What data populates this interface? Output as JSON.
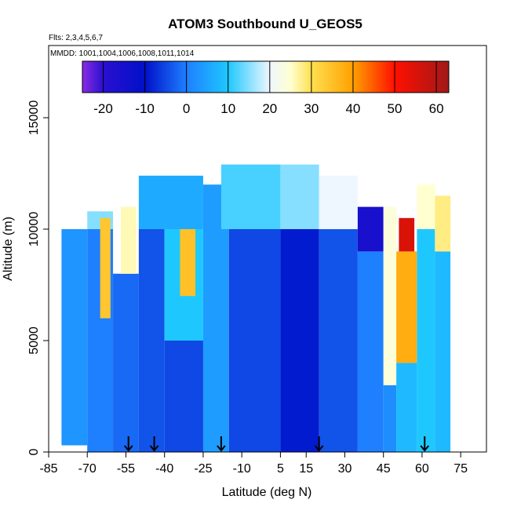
{
  "chart_data": {
    "type": "curtain",
    "title": "ATOM3 Southbound U_GEOS5",
    "subtitle": "Flts: 2,3,4,5,6,7",
    "annotation": "MMDD: 1001,1004,1006,1008,1011,1014",
    "x_label": "Latitude (deg N)",
    "y_label": "Altitude (m)",
    "xlim": [
      -85,
      85
    ],
    "ylim": [
      0,
      18240
    ],
    "xticks": [
      -85,
      -70,
      -55,
      -40,
      -25,
      -10,
      5,
      15,
      30,
      45,
      60,
      75
    ],
    "yticks": [
      0,
      5000,
      10000,
      15000
    ],
    "colorbar_lim": [
      -25,
      63
    ],
    "colorbar_ticks": [
      -20,
      -10,
      0,
      10,
      20,
      30,
      40,
      50,
      60
    ],
    "colorscale": [
      {
        "value": -25,
        "color": "#8a2be2"
      },
      {
        "value": -20,
        "color": "#2a10d0"
      },
      {
        "value": -10,
        "color": "#0010c8"
      },
      {
        "value": 0,
        "color": "#1e7fff"
      },
      {
        "value": 10,
        "color": "#1ec8ff"
      },
      {
        "value": 20,
        "color": "#eef6ff"
      },
      {
        "value": 25,
        "color": "#ffffd0"
      },
      {
        "value": 30,
        "color": "#ffe050"
      },
      {
        "value": 40,
        "color": "#ffa000"
      },
      {
        "value": 50,
        "color": "#ff1000"
      },
      {
        "value": 63,
        "color": "#a01818"
      }
    ],
    "flight_arrows": [
      -54,
      -44,
      -18,
      20,
      61
    ],
    "cells": [
      {
        "lat": [
          -80,
          -70
        ],
        "alt": [
          300,
          10000
        ],
        "value": 3
      },
      {
        "lat": [
          -70,
          -60
        ],
        "alt": [
          0,
          10000
        ],
        "value": 0
      },
      {
        "lat": [
          -70,
          -60
        ],
        "alt": [
          10000,
          10800
        ],
        "value": 15
      },
      {
        "lat": [
          -65,
          -61
        ],
        "alt": [
          6000,
          10500
        ],
        "value": 34
      },
      {
        "lat": [
          -60,
          -50
        ],
        "alt": [
          0,
          8000
        ],
        "value": -2
      },
      {
        "lat": [
          -57,
          -51
        ],
        "alt": [
          8000,
          11000
        ],
        "value": 26
      },
      {
        "lat": [
          -50,
          -40
        ],
        "alt": [
          0,
          10000
        ],
        "value": -4
      },
      {
        "lat": [
          -50,
          -25
        ],
        "alt": [
          10000,
          12400
        ],
        "value": 6
      },
      {
        "lat": [
          -40,
          -25
        ],
        "alt": [
          0,
          5000
        ],
        "value": -5
      },
      {
        "lat": [
          -40,
          -25
        ],
        "alt": [
          5000,
          10000
        ],
        "value": 10
      },
      {
        "lat": [
          -34,
          -28
        ],
        "alt": [
          7000,
          10000
        ],
        "value": 35
      },
      {
        "lat": [
          -25,
          -15
        ],
        "alt": [
          0,
          12000
        ],
        "value": 4
      },
      {
        "lat": [
          -15,
          5
        ],
        "alt": [
          0,
          10000
        ],
        "value": -5
      },
      {
        "lat": [
          -18,
          5
        ],
        "alt": [
          10000,
          12900
        ],
        "value": 12
      },
      {
        "lat": [
          5,
          20
        ],
        "alt": [
          0,
          10000
        ],
        "value": -9
      },
      {
        "lat": [
          5,
          20
        ],
        "alt": [
          10000,
          12900
        ],
        "value": 15
      },
      {
        "lat": [
          20,
          35
        ],
        "alt": [
          0,
          10000
        ],
        "value": -4
      },
      {
        "lat": [
          20,
          35
        ],
        "alt": [
          10000,
          12400
        ],
        "value": 20
      },
      {
        "lat": [
          35,
          45
        ],
        "alt": [
          0,
          9000
        ],
        "value": 0
      },
      {
        "lat": [
          35,
          45
        ],
        "alt": [
          9000,
          11000
        ],
        "value": -16
      },
      {
        "lat": [
          45,
          50
        ],
        "alt": [
          0,
          3000
        ],
        "value": 2
      },
      {
        "lat": [
          45,
          50
        ],
        "alt": [
          3000,
          11000
        ],
        "value": 24
      },
      {
        "lat": [
          50,
          58
        ],
        "alt": [
          0,
          4000
        ],
        "value": 8
      },
      {
        "lat": [
          50,
          58
        ],
        "alt": [
          4000,
          9000
        ],
        "value": 38
      },
      {
        "lat": [
          51,
          57
        ],
        "alt": [
          9000,
          10500
        ],
        "value": 55
      },
      {
        "lat": [
          58,
          65
        ],
        "alt": [
          0,
          10000
        ],
        "value": 10
      },
      {
        "lat": [
          58,
          65
        ],
        "alt": [
          10000,
          12000
        ],
        "value": 25
      },
      {
        "lat": [
          65,
          71
        ],
        "alt": [
          0,
          9000
        ],
        "value": 8
      },
      {
        "lat": [
          65,
          71
        ],
        "alt": [
          9000,
          11500
        ],
        "value": 28
      }
    ]
  }
}
